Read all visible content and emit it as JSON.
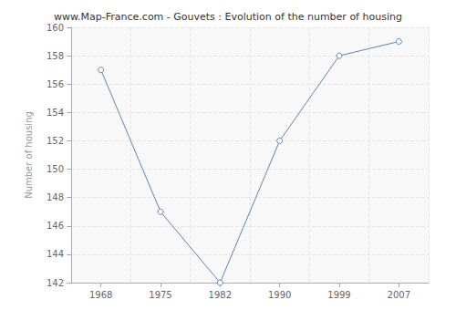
{
  "chart_data": {
    "type": "line",
    "title": "www.Map-France.com - Gouvets : Evolution of the number of housing",
    "y_label": "Number of housing",
    "categories": [
      "1968",
      "1975",
      "1982",
      "1990",
      "1999",
      "2007"
    ],
    "values": [
      157,
      147,
      142,
      152,
      158,
      159
    ],
    "color": "#5b84b1",
    "marker": "circle",
    "ylim": [
      142,
      160
    ],
    "yticks": [
      142,
      144,
      146,
      148,
      150,
      152,
      154,
      156,
      158,
      160
    ],
    "grid": true
  }
}
